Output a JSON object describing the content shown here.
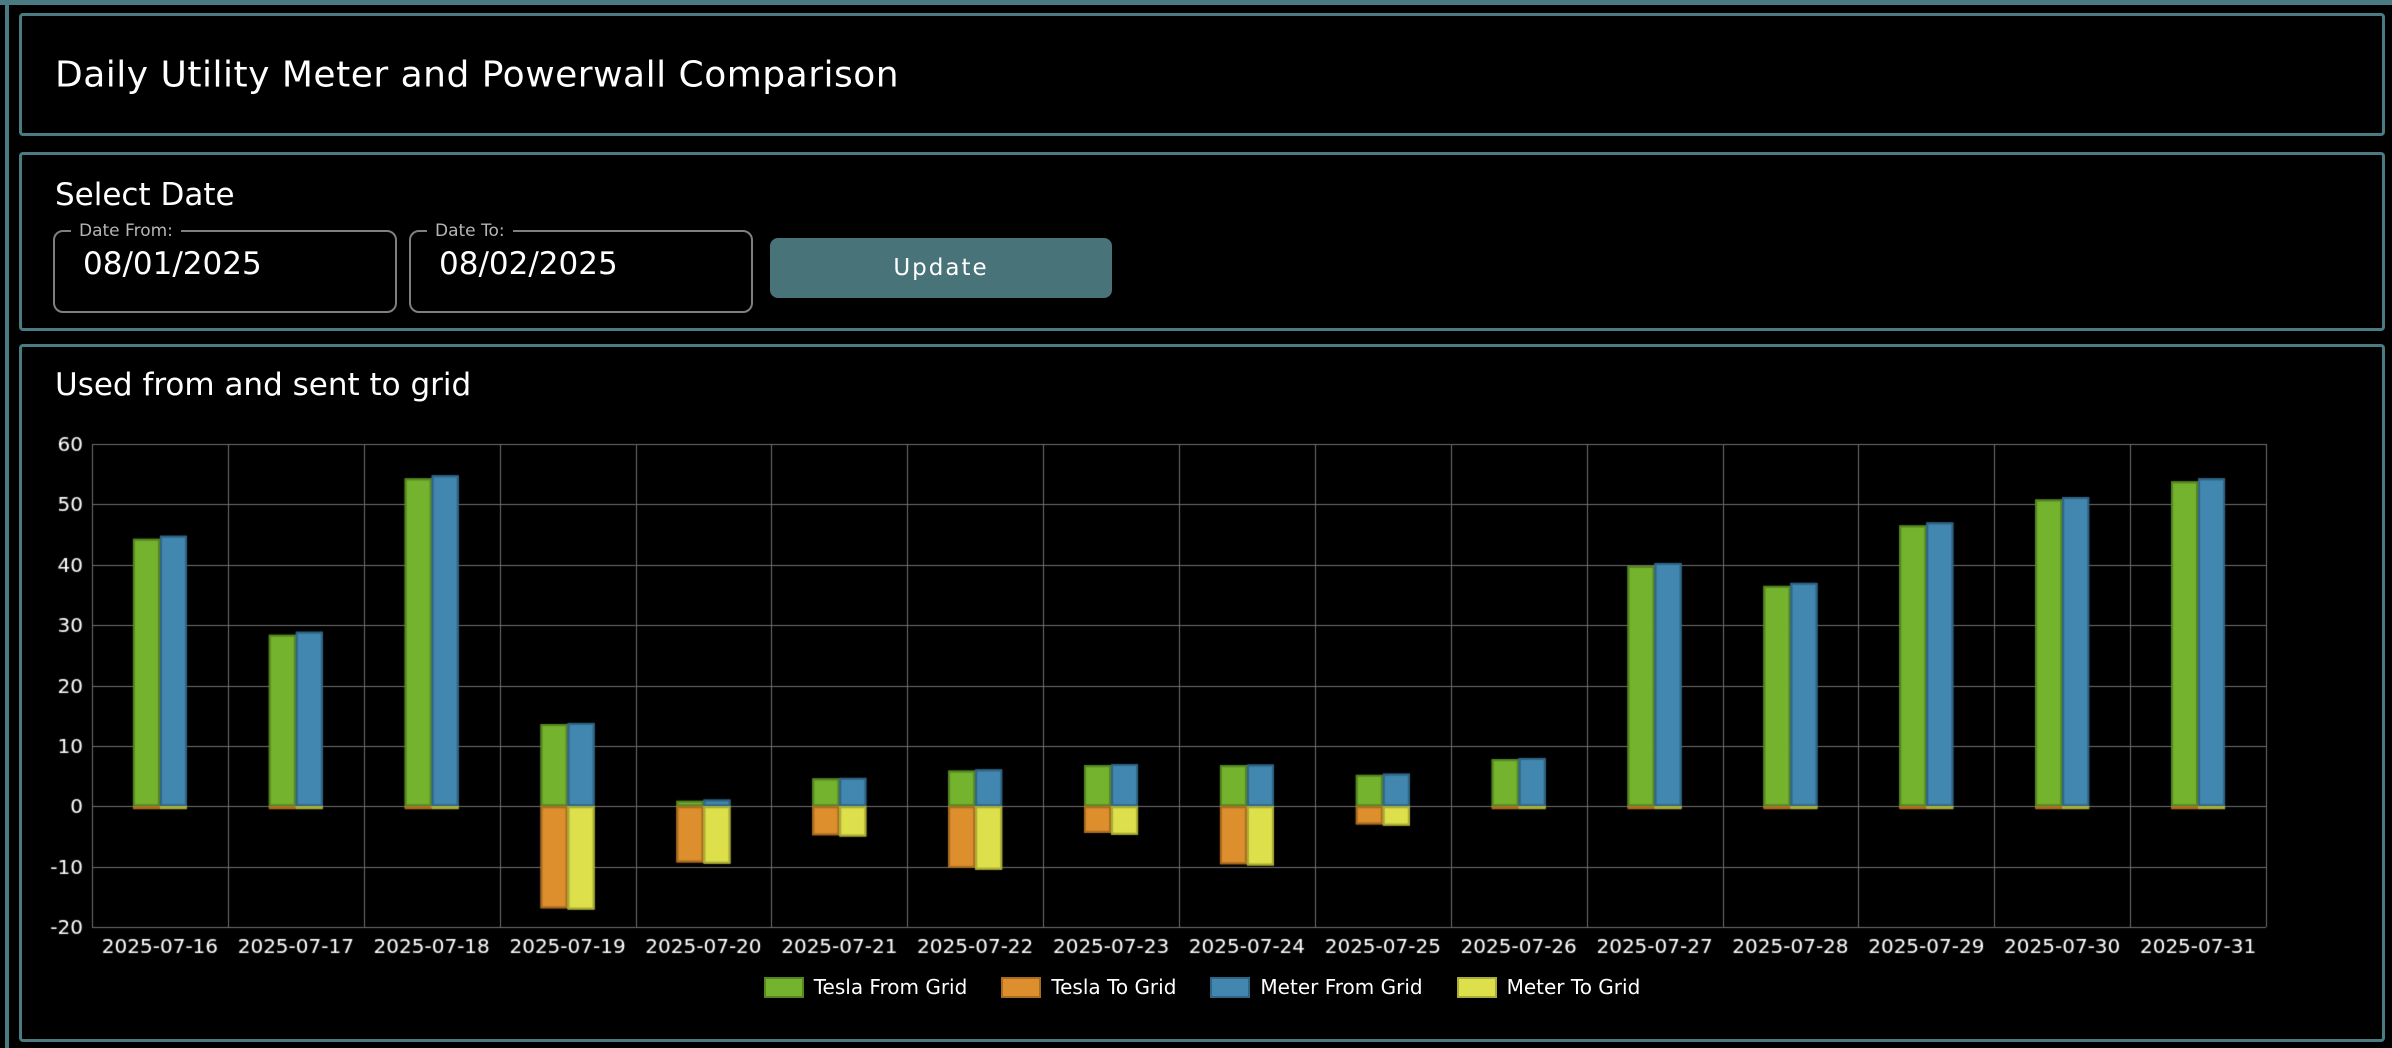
{
  "page": {
    "title": "Daily Utility Meter and Powerwall Comparison"
  },
  "date_controls": {
    "heading": "Select Date",
    "date_from": {
      "label": "Date From:",
      "value": "08/01/2025"
    },
    "date_to": {
      "label": "Date To:",
      "value": "08/02/2025"
    },
    "update_label": "Update"
  },
  "chart_section": {
    "title": "Used from and sent to grid"
  },
  "colors": {
    "background": "#000000",
    "panel_border": "#4a7b82",
    "button_bg": "#487379",
    "fieldset_border": "#7f7f7f",
    "fieldset_label": "#b5b5b5",
    "gridline": "#6f6f6f",
    "tick_text": "#ffffff"
  },
  "chart_data": {
    "type": "bar",
    "title": "Used from and sent to grid",
    "categories": [
      "2025-07-16",
      "2025-07-17",
      "2025-07-18",
      "2025-07-19",
      "2025-07-20",
      "2025-07-21",
      "2025-07-22",
      "2025-07-23",
      "2025-07-24",
      "2025-07-25",
      "2025-07-26",
      "2025-07-27",
      "2025-07-28",
      "2025-07-29",
      "2025-07-30",
      "2025-07-31"
    ],
    "series": [
      {
        "name": "Tesla From Grid",
        "color": "#74b32e",
        "border_color": "#578621",
        "column": 0,
        "values": [
          44.3,
          28.4,
          54.3,
          13.6,
          0.9,
          4.6,
          5.9,
          6.8,
          6.8,
          5.2,
          7.8,
          39.8,
          36.5,
          46.5,
          50.8,
          53.8
        ]
      },
      {
        "name": "Tesla To Grid",
        "color": "#dd8e2d",
        "border_color": "#aa6c20",
        "column": 0,
        "values": [
          -0.3,
          -0.3,
          -0.3,
          -16.9,
          -9.3,
          -4.8,
          -10.2,
          -4.4,
          -9.6,
          -3.0,
          -0.3,
          -0.3,
          -0.3,
          -0.3,
          -0.3,
          -0.3
        ]
      },
      {
        "name": "Meter From Grid",
        "color": "#4187b0",
        "border_color": "#306586",
        "column": 1,
        "values": [
          44.8,
          28.9,
          54.8,
          13.8,
          1.1,
          4.7,
          6.1,
          7.0,
          6.9,
          5.4,
          8.0,
          40.3,
          37.0,
          47.0,
          51.2,
          54.3
        ]
      },
      {
        "name": "Meter To Grid",
        "color": "#dde04a",
        "border_color": "#a9ac36",
        "column": 1,
        "values": [
          -0.4,
          -0.4,
          -0.4,
          -17.1,
          -9.5,
          -5.0,
          -10.5,
          -4.7,
          -9.8,
          -3.2,
          -0.4,
          -0.4,
          -0.4,
          -0.4,
          -0.4,
          -0.4
        ]
      }
    ],
    "ylim": [
      -20,
      60
    ],
    "ytick_step": 10,
    "yticks": [
      "60",
      "50",
      "40",
      "30",
      "20",
      "10",
      "0",
      "-10",
      "-20"
    ],
    "grid": true,
    "legend_position": "bottom"
  }
}
